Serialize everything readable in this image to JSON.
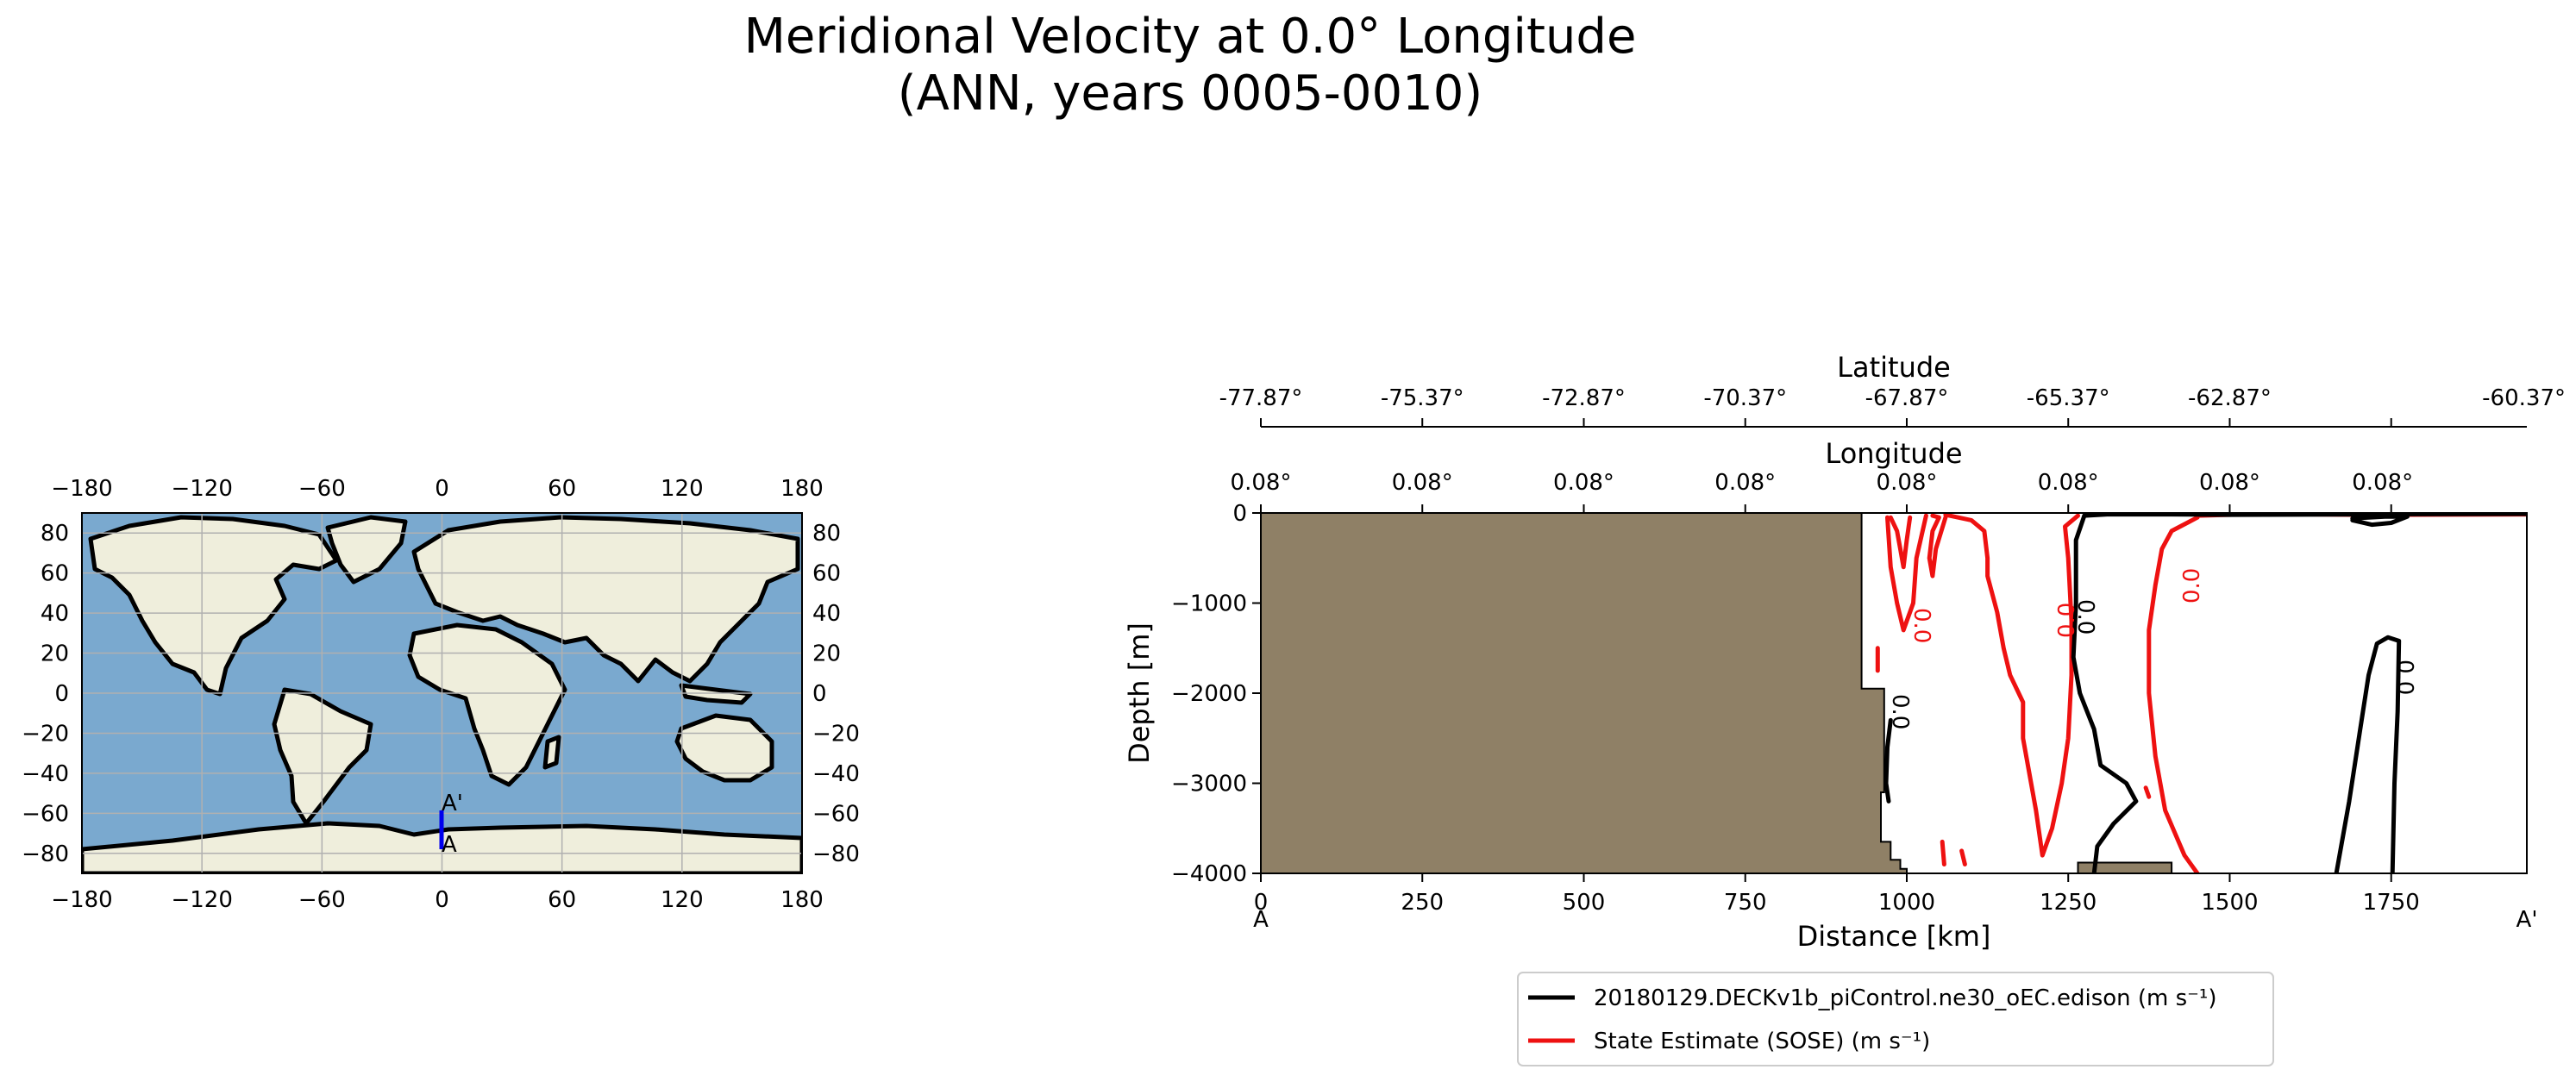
{
  "title": {
    "line1": "Meridional Velocity at 0.0° Longitude",
    "line2": "(ANN, years 0005-0010)"
  },
  "colors": {
    "ocean": "#7aa9cf",
    "land": "#efeedc",
    "grid": "#b0b0b0",
    "bathymetry": "#8f8066",
    "model_contour": "#000000",
    "obs_contour": "#ee1111",
    "transect": "#0000ee"
  },
  "map": {
    "x_ticks": [
      "−180",
      "−120",
      "−60",
      "0",
      "60",
      "120",
      "180"
    ],
    "y_ticks_left": [
      "80",
      "60",
      "40",
      "20",
      "0",
      "−20",
      "−40",
      "−60",
      "−80"
    ],
    "y_ticks_right": [
      "80",
      "60",
      "40",
      "20",
      "0",
      "−20",
      "−40",
      "−60",
      "−80"
    ],
    "start_label": "A",
    "end_label": "A'"
  },
  "chart_data": {
    "type": "contour-transect",
    "top_axis_1": {
      "label": "Latitude",
      "ticks": [
        "-77.87°",
        "-75.37°",
        "-72.87°",
        "-70.37°",
        "-67.87°",
        "-65.37°",
        "-62.87°",
        "-60.37°"
      ]
    },
    "top_axis_2": {
      "label": "Longitude",
      "ticks": [
        "0.08°",
        "0.08°",
        "0.08°",
        "0.08°",
        "0.08°",
        "0.08°",
        "0.08°",
        "0.08°"
      ]
    },
    "xlabel": "Distance [km]",
    "ylabel": "Depth [m]",
    "x_ticks": [
      0,
      250,
      500,
      750,
      1000,
      1250,
      1500,
      1750
    ],
    "x_tick_labels": [
      "0",
      "250",
      "500",
      "750",
      "1000",
      "1250",
      "1500",
      "1750"
    ],
    "y_ticks": [
      0,
      -1000,
      -2000,
      -3000,
      -4000
    ],
    "y_tick_labels": [
      "0",
      "−1000",
      "−2000",
      "−3000",
      "−4000"
    ],
    "xlim": [
      0,
      1960
    ],
    "ylim": [
      -4000,
      0
    ],
    "start_label": "A",
    "end_label": "A'",
    "contour_level_label": "0.0",
    "legend": [
      {
        "label": "20180129.DECKv1b_piControl.ne30_oEC.edison (m s⁻¹)",
        "color": "#000000"
      },
      {
        "label": "State Estimate (SOSE) (m s⁻¹)",
        "color": "#ee1111"
      }
    ],
    "bathymetry": [
      [
        0,
        0
      ],
      [
        930,
        0
      ],
      [
        930,
        -1950
      ],
      [
        965,
        -1950
      ],
      [
        965,
        -3100
      ],
      [
        960,
        -3100
      ],
      [
        960,
        -3650
      ],
      [
        975,
        -3650
      ],
      [
        975,
        -3850
      ],
      [
        990,
        -3850
      ],
      [
        990,
        -3950
      ],
      [
        1000,
        -3950
      ],
      [
        1000,
        -4000
      ],
      [
        0,
        -4000
      ]
    ],
    "bathymetry_2": [
      [
        1265,
        -4000
      ],
      [
        1265,
        -3880
      ],
      [
        1410,
        -3880
      ],
      [
        1410,
        -4000
      ]
    ],
    "model_contours": [
      [
        [
          1275,
          -30
        ],
        [
          1262,
          -300
        ],
        [
          1262,
          -1000
        ],
        [
          1258,
          -1600
        ],
        [
          1268,
          -2000
        ],
        [
          1290,
          -2400
        ],
        [
          1300,
          -2800
        ],
        [
          1340,
          -3000
        ],
        [
          1355,
          -3200
        ],
        [
          1320,
          -3450
        ],
        [
          1295,
          -3700
        ],
        [
          1290,
          -4000
        ]
      ],
      [
        [
          1275,
          -30
        ],
        [
          1310,
          -15
        ],
        [
          1410,
          -15
        ],
        [
          1500,
          -20
        ],
        [
          1700,
          -15
        ],
        [
          1960,
          -10
        ]
      ],
      [
        [
          1665,
          -4000
        ],
        [
          1685,
          -3200
        ],
        [
          1702,
          -2400
        ],
        [
          1715,
          -1800
        ],
        [
          1728,
          -1450
        ],
        [
          1745,
          -1380
        ],
        [
          1762,
          -1420
        ],
        [
          1760,
          -2200
        ],
        [
          1755,
          -3000
        ],
        [
          1752,
          -4000
        ]
      ],
      [
        [
          1690,
          -80
        ],
        [
          1720,
          -130
        ],
        [
          1750,
          -110
        ],
        [
          1775,
          -40
        ],
        [
          1740,
          -40
        ],
        [
          1690,
          -60
        ]
      ],
      [
        [
          975,
          -2300
        ],
        [
          970,
          -2600
        ],
        [
          968,
          -3000
        ],
        [
          972,
          -3200
        ]
      ]
    ],
    "obs_contours": [
      [
        [
          975,
          -50
        ],
        [
          985,
          -200
        ],
        [
          990,
          -400
        ],
        [
          995,
          -600
        ],
        [
          1000,
          -300
        ],
        [
          1005,
          -50
        ]
      ],
      [
        [
          970,
          -50
        ],
        [
          975,
          -600
        ],
        [
          985,
          -1000
        ],
        [
          995,
          -1300
        ],
        [
          1010,
          -1000
        ],
        [
          1015,
          -500
        ],
        [
          1030,
          -30
        ]
      ],
      [
        [
          1040,
          -30
        ],
        [
          1050,
          -50
        ],
        [
          1040,
          -200
        ],
        [
          1035,
          -500
        ],
        [
          1040,
          -700
        ],
        [
          1045,
          -400
        ],
        [
          1060,
          -50
        ]
      ],
      [
        [
          1060,
          -20
        ],
        [
          1100,
          -80
        ],
        [
          1120,
          -200
        ],
        [
          1125,
          -500
        ],
        [
          1125,
          -700
        ],
        [
          1140,
          -1100
        ],
        [
          1150,
          -1500
        ],
        [
          1160,
          -1800
        ],
        [
          1180,
          -2100
        ],
        [
          1180,
          -2500
        ],
        [
          1190,
          -2900
        ],
        [
          1200,
          -3300
        ],
        [
          1210,
          -3800
        ],
        [
          1225,
          -3500
        ],
        [
          1240,
          -3000
        ],
        [
          1250,
          -2500
        ],
        [
          1255,
          -1800
        ],
        [
          1255,
          -1200
        ],
        [
          1250,
          -500
        ],
        [
          1245,
          -150
        ],
        [
          1265,
          -30
        ]
      ],
      [
        [
          1450,
          -50
        ],
        [
          1410,
          -200
        ],
        [
          1395,
          -400
        ],
        [
          1385,
          -800
        ],
        [
          1375,
          -1300
        ],
        [
          1375,
          -2000
        ],
        [
          1385,
          -2700
        ],
        [
          1400,
          -3300
        ],
        [
          1430,
          -3800
        ],
        [
          1450,
          -4000
        ]
      ],
      [
        [
          1450,
          -30
        ],
        [
          1550,
          -10
        ],
        [
          1700,
          -20
        ],
        [
          1960,
          -15
        ]
      ],
      [
        [
          955,
          -1500
        ],
        [
          955,
          -1750
        ]
      ],
      [
        [
          1055,
          -3650
        ],
        [
          1058,
          -3900
        ]
      ],
      [
        [
          1085,
          -3750
        ],
        [
          1090,
          -3900
        ]
      ],
      [
        [
          1370,
          -3050
        ],
        [
          1375,
          -3150
        ]
      ]
    ]
  }
}
